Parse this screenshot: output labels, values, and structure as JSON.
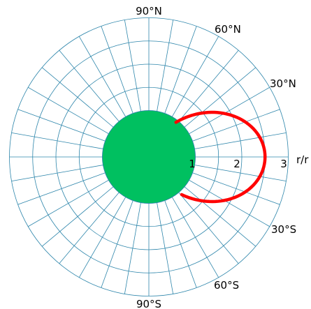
{
  "chart_data": {
    "type": "polar-dipole",
    "angle_labels": {
      "north_90": "90°N",
      "north_60": "60°N",
      "north_30": "30°N",
      "south_30": "30°S",
      "south_60": "60°S",
      "south_90": "90°S"
    },
    "radial_ticks": [
      "1",
      "2",
      "3"
    ],
    "radial_axis_label": "r/r",
    "radial_range": [
      0,
      3
    ],
    "planet": {
      "radius": 1,
      "color": "#00c060"
    },
    "grid_color": "#2e86ab",
    "grid": {
      "circle_radii": [
        1,
        1.5,
        2,
        2.5,
        3
      ],
      "spoke_step_deg": 10
    },
    "series": [
      {
        "color": "#ff0000",
        "shell_L": 2.5,
        "latitude_range_deg": [
          52,
          -49
        ]
      }
    ]
  }
}
